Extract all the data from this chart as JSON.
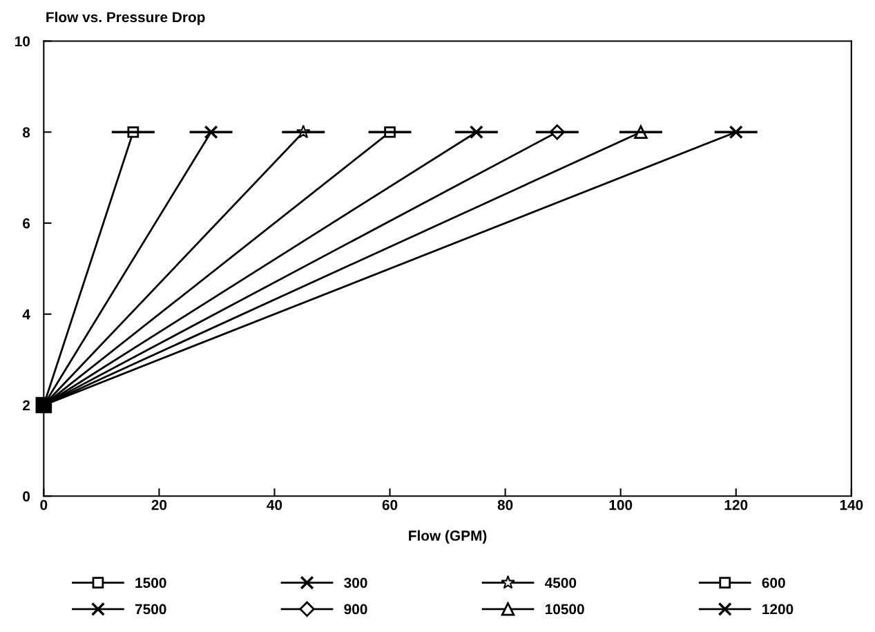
{
  "chart_data": {
    "type": "line",
    "title": "Flow vs. Pressure Drop",
    "xlabel": "Flow (GPM)",
    "xlim": [
      0,
      140
    ],
    "xticks": [
      0,
      20,
      40,
      60,
      80,
      100,
      120,
      140
    ],
    "ylim": [
      0,
      10
    ],
    "yticks": [
      0,
      2,
      4,
      6,
      8,
      10
    ],
    "grid": false,
    "legend": "bottom",
    "line_style": "solid",
    "series": [
      {
        "name": "1500",
        "color": "#000000",
        "marker": "square",
        "x": [
          0,
          15.5
        ],
        "values": [
          2,
          8
        ],
        "xerrors": [
          null,
          3.5
        ]
      },
      {
        "name": "300",
        "color": "#000000",
        "marker": "cross",
        "x": [
          0,
          29
        ],
        "values": [
          2,
          8
        ],
        "xerrors": [
          null,
          3.5
        ]
      },
      {
        "name": "4500",
        "color": "#000000",
        "marker": "star",
        "x": [
          0,
          45
        ],
        "values": [
          2,
          8
        ],
        "xerrors": [
          null,
          3.5
        ]
      },
      {
        "name": "600",
        "color": "#000000",
        "marker": "square",
        "x": [
          0,
          60
        ],
        "values": [
          2,
          8
        ],
        "xerrors": [
          null,
          3.5
        ]
      },
      {
        "name": "7500",
        "color": "#000000",
        "marker": "cross",
        "x": [
          0,
          75
        ],
        "values": [
          2,
          8
        ],
        "xerrors": [
          null,
          3.5
        ]
      },
      {
        "name": "900",
        "color": "#000000",
        "marker": "diamond",
        "x": [
          0,
          89
        ],
        "values": [
          2,
          8
        ],
        "xerrors": [
          null,
          3.5
        ]
      },
      {
        "name": "10500",
        "color": "#000000",
        "marker": "triangle",
        "x": [
          0,
          103.5
        ],
        "values": [
          2,
          8
        ],
        "xerrors": [
          null,
          3.5
        ]
      },
      {
        "name": "1200",
        "color": "#000000",
        "marker": "cross",
        "x": [
          0,
          120
        ],
        "values": [
          2,
          8
        ],
        "xerrors": [
          null,
          3.5
        ]
      },
      {
        "type": "scatter",
        "color": "#000000",
        "marker": "square",
        "x": [
          0
        ],
        "values": [
          2
        ]
      }
    ]
  }
}
